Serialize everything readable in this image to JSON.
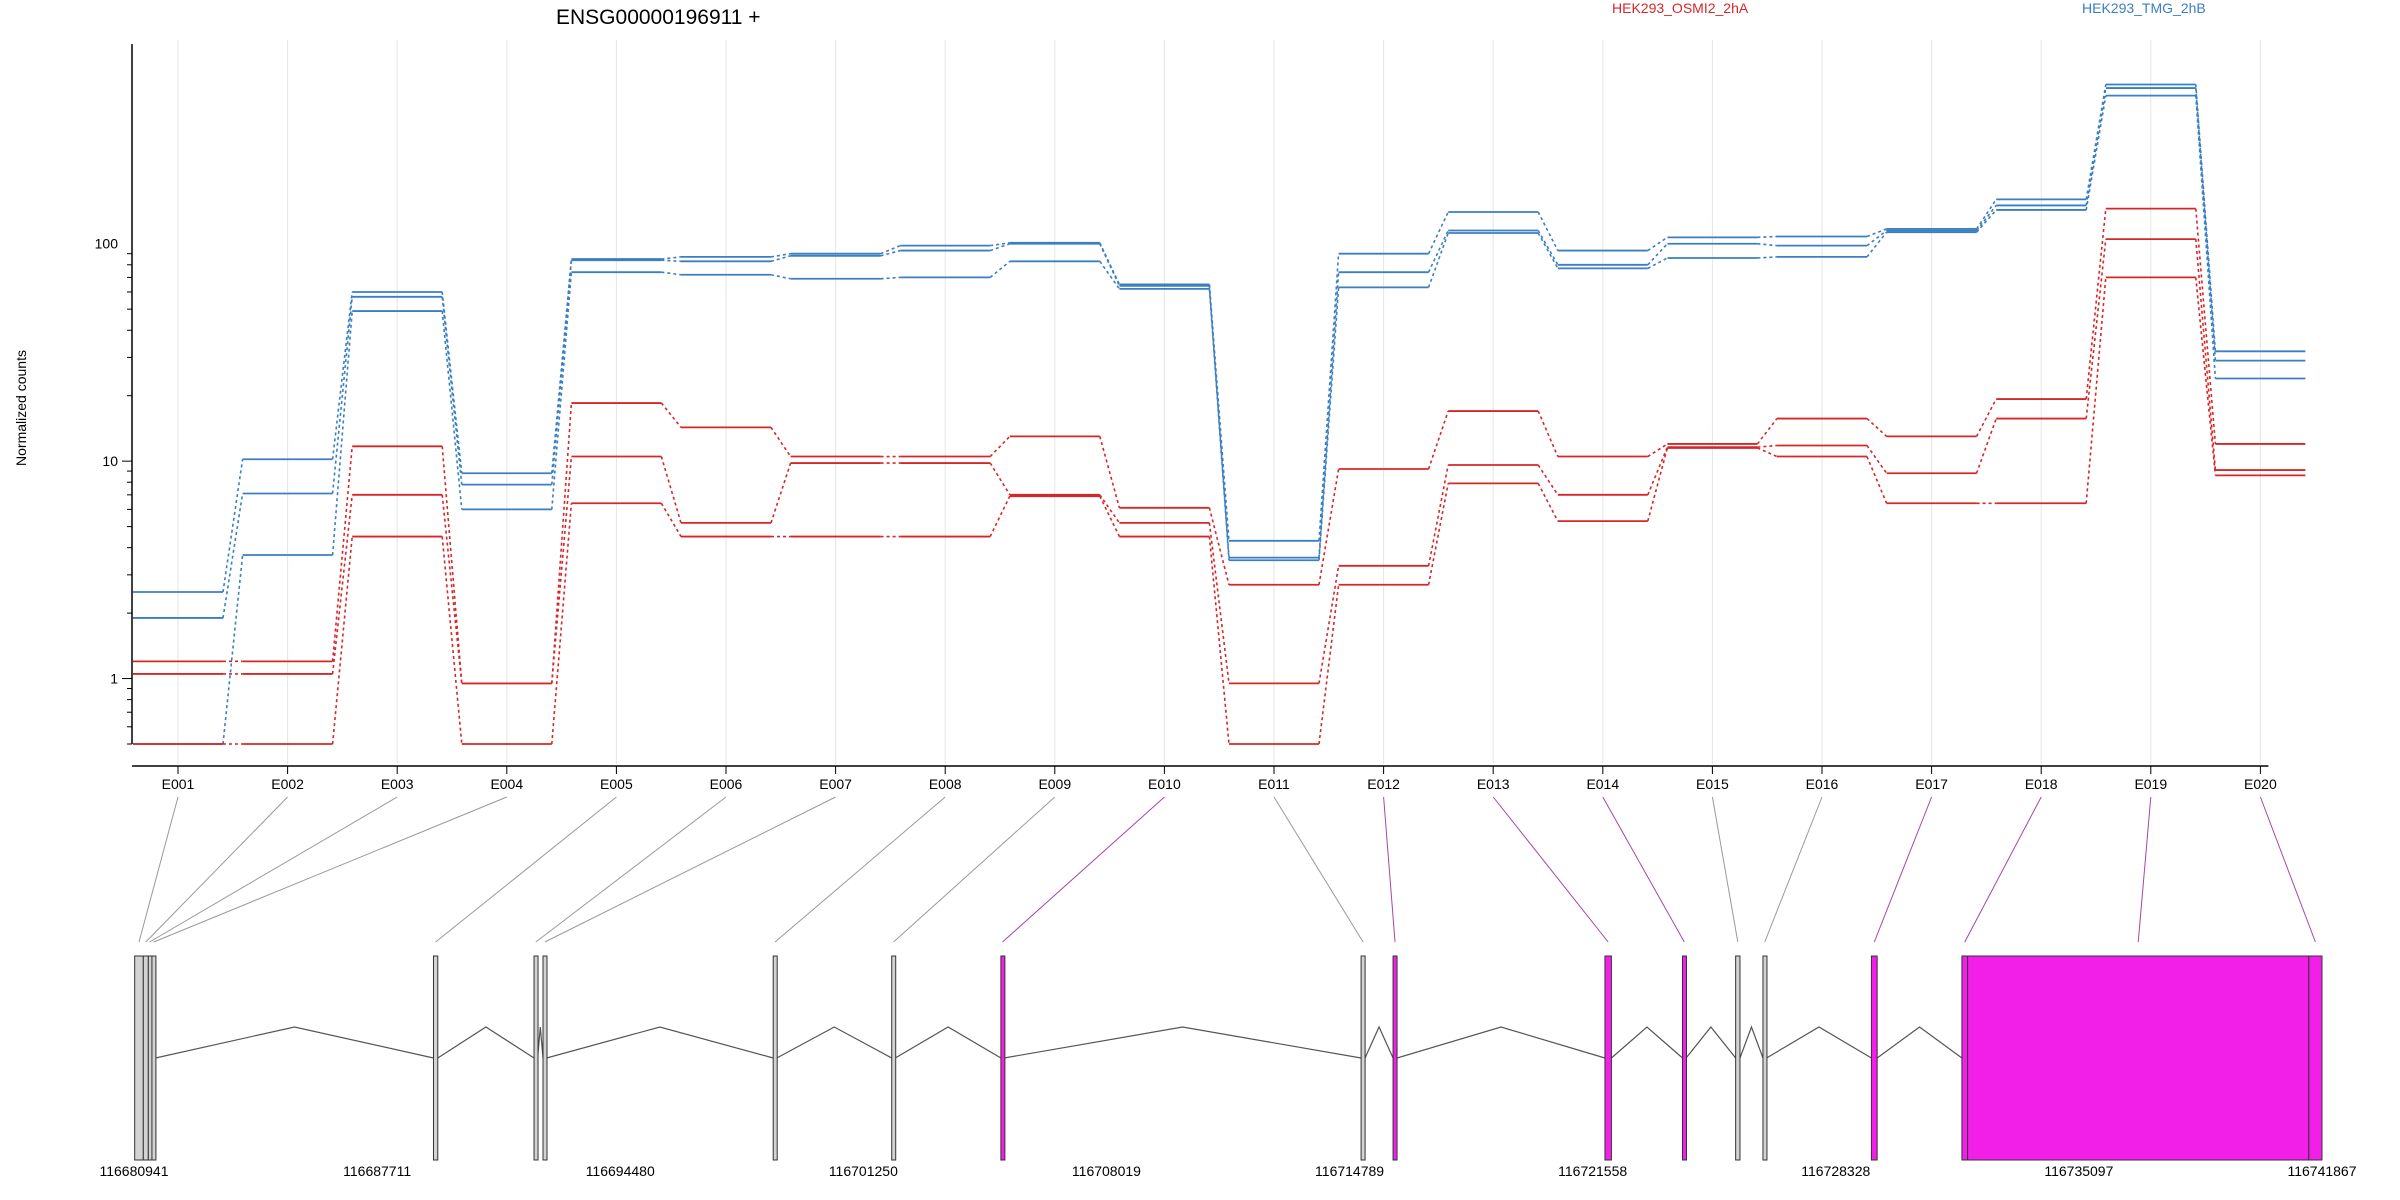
{
  "chart_data": {
    "type": "line",
    "title": "ENSG00000196911 +",
    "ylabel": "Normalized counts",
    "yscale": "log",
    "ylim": [
      0.5,
      700
    ],
    "yticks": [
      {
        "value": 1,
        "label": "1"
      },
      {
        "value": 10,
        "label": "10"
      },
      {
        "value": 100,
        "label": "100"
      }
    ],
    "grid_x": true,
    "legend_position": "top",
    "categories": [
      "E001",
      "E002",
      "E003",
      "E004",
      "E005",
      "E006",
      "E007",
      "E008",
      "E009",
      "E010",
      "E011",
      "E012",
      "E013",
      "E014",
      "E015",
      "E016",
      "E017",
      "E018",
      "E019",
      "E020"
    ],
    "groups": [
      {
        "name": "HEK293_OSMI2_2hA",
        "color": "#d62728"
      },
      {
        "name": "HEK293_TMG_2hB",
        "color": "#3a7fc2"
      }
    ],
    "series": [
      {
        "group": "HEK293_TMG_2hB",
        "values": [
          2.5,
          10.2,
          60,
          8.8,
          85,
          87,
          90,
          98,
          101,
          65,
          4.3,
          90,
          140,
          93,
          107,
          108,
          117,
          160,
          540,
          32
        ]
      },
      {
        "group": "HEK293_TMG_2hB",
        "values": [
          1.9,
          7.1,
          57,
          7.8,
          84,
          83,
          88,
          93,
          100,
          64,
          3.6,
          74,
          115,
          80,
          100,
          98,
          115,
          150,
          520,
          29
        ]
      },
      {
        "group": "HEK293_TMG_2hB",
        "values": [
          0.5,
          3.7,
          49,
          6.0,
          74,
          72,
          69,
          70,
          83,
          62,
          3.5,
          63,
          112,
          77,
          86,
          87,
          113,
          143,
          480,
          24
        ]
      },
      {
        "group": "HEK293_OSMI2_2hA",
        "values": [
          1.2,
          1.2,
          11.7,
          0.95,
          18.5,
          14.3,
          10.5,
          10.5,
          13.0,
          6.1,
          2.7,
          9.2,
          17.0,
          10.5,
          12.0,
          15.7,
          13.0,
          19.3,
          145,
          12.0
        ]
      },
      {
        "group": "HEK293_OSMI2_2hA",
        "values": [
          1.05,
          1.05,
          7.0,
          0.95,
          10.5,
          5.2,
          9.8,
          9.8,
          7.0,
          5.2,
          0.95,
          3.3,
          9.6,
          7.0,
          11.6,
          11.8,
          8.8,
          15.7,
          105,
          9.1
        ]
      },
      {
        "group": "HEK293_OSMI2_2hA",
        "values": [
          0.5,
          0.5,
          4.5,
          0.5,
          6.4,
          4.5,
          4.5,
          4.5,
          6.9,
          4.5,
          0.5,
          2.7,
          7.9,
          5.3,
          11.5,
          10.5,
          6.4,
          6.4,
          70,
          8.6
        ]
      }
    ],
    "gene_model": {
      "genomic_ticks": [
        "116680941",
        "116687711",
        "116694480",
        "116701250",
        "116708019",
        "116714789",
        "116721558",
        "116728328",
        "116735097",
        "116741867"
      ],
      "exons": [
        {
          "id": "E001",
          "start": 116680960,
          "end": 116681200,
          "tested": false
        },
        {
          "id": "E002",
          "start": 116681200,
          "end": 116681340,
          "tested": false
        },
        {
          "id": "E003",
          "start": 116681340,
          "end": 116681410,
          "tested": false
        },
        {
          "id": "E004",
          "start": 116681440,
          "end": 116681540,
          "tested": false
        },
        {
          "id": "E005",
          "start": 116689280,
          "end": 116689400,
          "tested": false
        },
        {
          "id": "E006",
          "start": 116692080,
          "end": 116692180,
          "tested": false
        },
        {
          "id": "E007",
          "start": 116692330,
          "end": 116692430,
          "tested": false
        },
        {
          "id": "E008",
          "start": 116698740,
          "end": 116698840,
          "tested": false
        },
        {
          "id": "E009",
          "start": 116702040,
          "end": 116702140,
          "tested": false
        },
        {
          "id": "E010",
          "start": 116705080,
          "end": 116705170,
          "tested": true
        },
        {
          "id": "E011",
          "start": 116715110,
          "end": 116715220,
          "tested": false
        },
        {
          "id": "E012",
          "start": 116716000,
          "end": 116716110,
          "tested": true
        },
        {
          "id": "E013",
          "start": 116721900,
          "end": 116722080,
          "tested": true
        },
        {
          "id": "E014",
          "start": 116724060,
          "end": 116724160,
          "tested": true
        },
        {
          "id": "E015",
          "start": 116725540,
          "end": 116725660,
          "tested": false
        },
        {
          "id": "E016",
          "start": 116726300,
          "end": 116726400,
          "tested": false
        },
        {
          "id": "E017",
          "start": 116729320,
          "end": 116729480,
          "tested": true
        },
        {
          "id": "E018",
          "start": 116731840,
          "end": 116732000,
          "tested": true
        },
        {
          "id": "E019",
          "start": 116732000,
          "end": 116741500,
          "tested": true
        },
        {
          "id": "E020",
          "start": 116741500,
          "end": 116741867,
          "tested": true
        }
      ]
    }
  },
  "colors": {
    "tested_exon": "#f11fe8",
    "untested_exon": "#d3d3d3",
    "link_tested": "#a646a6",
    "link_untested": "#999999"
  }
}
